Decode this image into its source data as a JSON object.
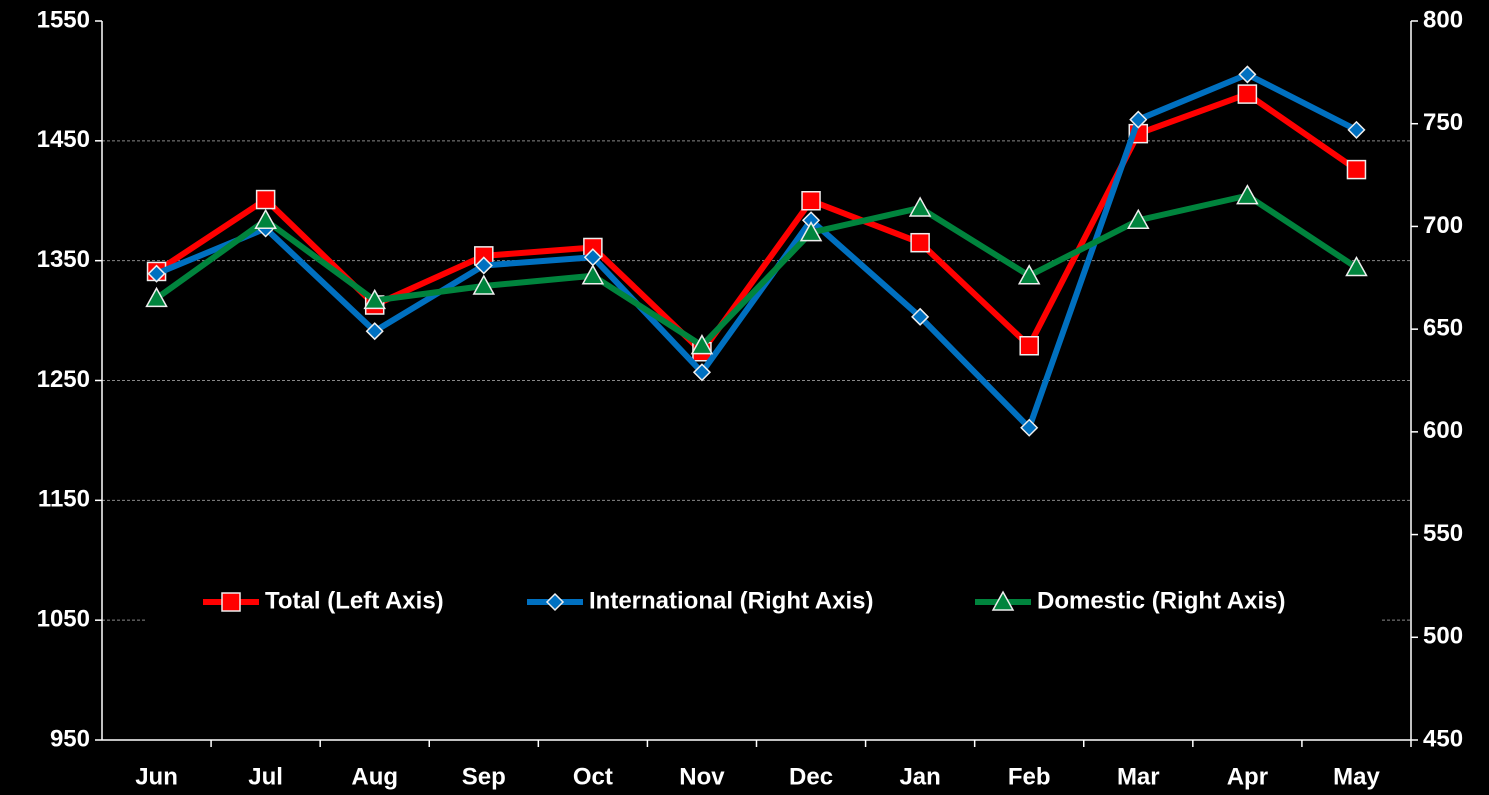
{
  "chart_data": {
    "type": "line",
    "categories": [
      "Jun",
      "Jul",
      "Aug",
      "Sep",
      "Oct",
      "Nov",
      "Dec",
      "Jan",
      "Feb",
      "Mar",
      "Apr",
      "May"
    ],
    "series": [
      {
        "name": "Total (Left Axis)",
        "color": "#ff0000",
        "marker": "square",
        "values": [
          1341,
          1401,
          1313,
          1354,
          1361,
          1274,
          1400,
          1365,
          1279,
          1456,
          1489,
          1426
        ]
      },
      {
        "name": "International (Right Axis)",
        "color": "#0070c0",
        "marker": "diamond",
        "axis": "y2",
        "values": [
          677,
          699,
          649,
          681,
          685,
          629,
          703,
          656,
          602,
          752,
          774,
          747
        ]
      },
      {
        "name": "Domestic (Right Axis)",
        "color": "#00843d",
        "marker": "triangle",
        "axis": "y2",
        "values": [
          665,
          703,
          664,
          671,
          676,
          642,
          697,
          709,
          676,
          703,
          715,
          680
        ]
      }
    ],
    "ylim": [
      950,
      1550
    ],
    "yticks": [
      950,
      1050,
      1150,
      1250,
      1350,
      1450,
      1550
    ],
    "y2lim": [
      450,
      800
    ],
    "y2ticks": [
      450,
      500,
      550,
      600,
      650,
      700,
      750,
      800
    ],
    "grid": true,
    "legend": "center"
  }
}
